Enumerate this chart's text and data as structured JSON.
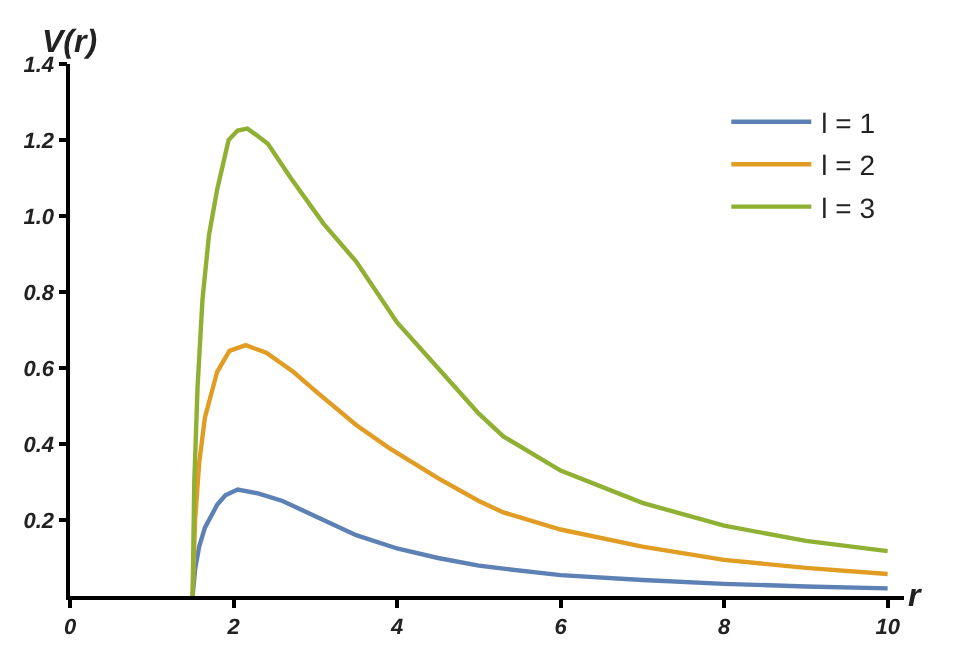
{
  "chart_data": {
    "type": "line",
    "xlabel": "r",
    "ylabel": "V(r)",
    "xlim": [
      0,
      10.2
    ],
    "ylim": [
      0,
      1.4
    ],
    "xticks": [
      0,
      2,
      4,
      6,
      8,
      10
    ],
    "yticks": [
      0.2,
      0.4,
      0.6,
      0.8,
      {
        "value": 1,
        "label": "1.0"
      },
      1.2,
      1.4
    ],
    "legend": "top right",
    "marker": "none",
    "line_style": "solid",
    "series": [
      {
        "name": "l = 1",
        "color": "#5e81b5",
        "x": [
          1.5,
          1.53,
          1.58,
          1.65,
          1.8,
          1.9,
          2.05,
          2.3,
          2.6,
          3,
          3.5,
          4,
          4.5,
          5,
          5.3,
          6,
          7,
          8,
          9,
          10
        ],
        "values": [
          0,
          0.07,
          0.13,
          0.18,
          0.24,
          0.265,
          0.28,
          0.27,
          0.25,
          0.21,
          0.16,
          0.125,
          0.1,
          0.08,
          0.072,
          0.055,
          0.042,
          0.032,
          0.025,
          0.02
        ]
      },
      {
        "name": "l = 2",
        "color": "#e19c24",
        "x": [
          1.5,
          1.53,
          1.58,
          1.65,
          1.8,
          1.95,
          2.15,
          2.4,
          2.73,
          3,
          3.5,
          3.9,
          4.5,
          5,
          5.3,
          6,
          7,
          8,
          9,
          10
        ],
        "values": [
          0,
          0.2,
          0.35,
          0.47,
          0.59,
          0.645,
          0.66,
          0.64,
          0.59,
          0.54,
          0.45,
          0.39,
          0.31,
          0.25,
          0.22,
          0.175,
          0.13,
          0.095,
          0.074,
          0.058
        ]
      },
      {
        "name": "l = 3",
        "color": "#8fb032",
        "x": [
          1.5,
          1.52,
          1.56,
          1.62,
          1.7,
          1.8,
          1.94,
          2.05,
          2.17,
          2.3,
          2.42,
          2.7,
          3.1,
          3.5,
          4,
          4.5,
          5,
          5.3,
          6,
          7,
          8,
          9,
          10
        ],
        "values": [
          0,
          0.3,
          0.55,
          0.78,
          0.95,
          1.07,
          1.2,
          1.225,
          1.23,
          1.21,
          1.19,
          1.1,
          0.98,
          0.88,
          0.72,
          0.6,
          0.48,
          0.42,
          0.33,
          0.245,
          0.185,
          0.145,
          0.118
        ]
      }
    ]
  }
}
